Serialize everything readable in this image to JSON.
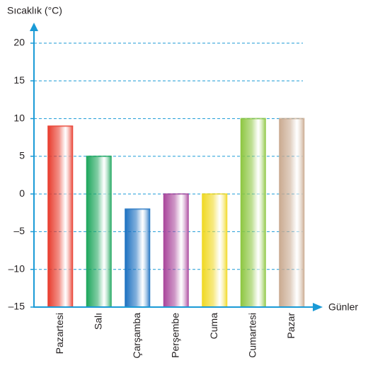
{
  "chart_data": {
    "type": "bar",
    "y_label": "Sıcaklık (°C)",
    "x_label": "Günler",
    "categories": [
      "Pazartesi",
      "Salı",
      "Çarşamba",
      "Perşembe",
      "Cuma",
      "Cumartesi",
      "Pazar"
    ],
    "values": [
      9,
      5,
      -2,
      0,
      0,
      10,
      10
    ],
    "colors": [
      "#e8392a",
      "#1aa55a",
      "#1a6fc0",
      "#a8449a",
      "#f0d820",
      "#8cc63f",
      "#c9a98f"
    ],
    "ylim": [
      -15,
      20
    ],
    "yticks": [
      {
        "value": -15,
        "label": "–15"
      },
      {
        "value": -10,
        "label": "–10"
      },
      {
        "value": -5,
        "label": "–5"
      },
      0,
      5,
      10,
      15,
      20
    ],
    "grid": true
  }
}
